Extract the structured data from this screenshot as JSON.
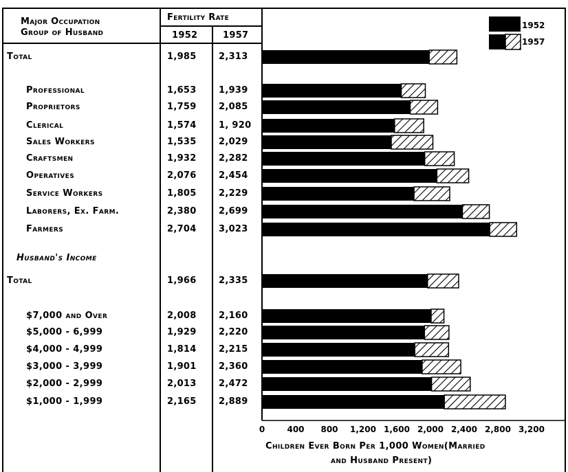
{
  "header": {
    "group_line1": "Major Occupation",
    "group_line2": "Group of Husband",
    "fertility_rate": "Fertility Rate",
    "year1": "1952",
    "year2": "1957"
  },
  "legend": [
    "1952",
    "1957"
  ],
  "x_axis": {
    "ticks": [
      "0",
      "400",
      "800",
      "1,200",
      "1,600",
      "2,000",
      "2,400",
      "2,800",
      "3,200"
    ],
    "label_line1": "Children Ever Born Per 1,000 Women(Married",
    "label_line2": "and Husband Present)"
  },
  "rows": [
    {
      "label": "Total",
      "v1952": "1,985",
      "v1957": "2,313"
    },
    {
      "label": "Professional",
      "v1952": "1,653",
      "v1957": "1,939"
    },
    {
      "label": "Proprietors",
      "v1952": "1,759",
      "v1957": "2,085"
    },
    {
      "label": "Clerical",
      "v1952": "1,574",
      "v1957": "1, 920"
    },
    {
      "label": "Sales Workers",
      "v1952": "1,535",
      "v1957": "2,029"
    },
    {
      "label": "Craftsmen",
      "v1952": "1,932",
      "v1957": "2,282"
    },
    {
      "label": "Operatives",
      "v1952": "2,076",
      "v1957": "2,454"
    },
    {
      "label": "Service Workers",
      "v1952": "1,805",
      "v1957": "2,229"
    },
    {
      "label": "Laborers, Ex. Farm.",
      "v1952": "2,380",
      "v1957": "2,699"
    },
    {
      "label": "Farmers",
      "v1952": "2,704",
      "v1957": "3,023"
    },
    {
      "label": "Husband's Income",
      "v1952": "",
      "v1957": ""
    },
    {
      "label": "Total",
      "v1952": "1,966",
      "v1957": "2,335"
    },
    {
      "label": "$7,000 and Over",
      "v1952": "2,008",
      "v1957": "2,160"
    },
    {
      "label": "$5,000 - 6,999",
      "v1952": "1,929",
      "v1957": "2,220"
    },
    {
      "label": "$4,000 - 4,999",
      "v1952": "1,814",
      "v1957": "2,215"
    },
    {
      "label": "$3,000 - 3,999",
      "v1952": "1,901",
      "v1957": "2,360"
    },
    {
      "label": "$2,000 - 2,999",
      "v1952": "2,013",
      "v1957": "2,472"
    },
    {
      "label": "$1,000 - 1,999",
      "v1952": "2,165",
      "v1957": "2,889"
    }
  ],
  "chart_data": {
    "type": "bar",
    "orientation": "horizontal",
    "xlabel": "Children Ever Born Per 1,000 Women (Married and Husband Present)",
    "xlim": [
      0,
      3200
    ],
    "legend_position": "top-right",
    "categories": [
      "Total",
      "Professional",
      "Proprietors",
      "Clerical",
      "Sales Workers",
      "Craftsmen",
      "Operatives",
      "Service Workers",
      "Laborers, Ex. Farm.",
      "Farmers",
      "Total",
      "$7,000 and Over",
      "$5,000 - 6,999",
      "$4,000 - 4,999",
      "$3,000 - 3,999",
      "$2,000 - 2,999",
      "$1,000 - 1,999"
    ],
    "series": [
      {
        "name": "1952",
        "color": "#000000",
        "values": [
          1985,
          1653,
          1759,
          1574,
          1535,
          1932,
          2076,
          1805,
          2380,
          2704,
          1966,
          2008,
          1929,
          1814,
          1901,
          2013,
          2165
        ]
      },
      {
        "name": "1957",
        "pattern": "hatched",
        "values": [
          2313,
          1939,
          2085,
          1920,
          2029,
          2282,
          2454,
          2229,
          2699,
          3023,
          2335,
          2160,
          2220,
          2215,
          2360,
          2472,
          2889
        ]
      }
    ]
  }
}
